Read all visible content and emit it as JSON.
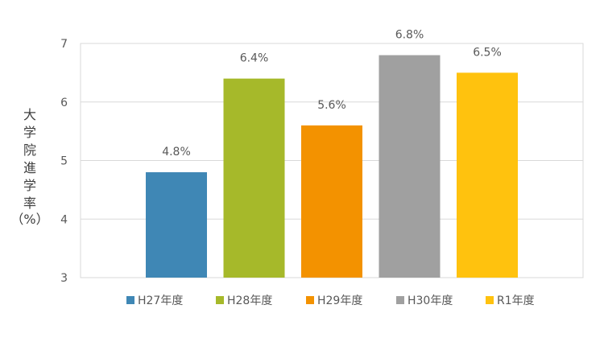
{
  "chart_data": {
    "type": "bar",
    "categories": [
      "H27年度",
      "H28年度",
      "H29年度",
      "H30年度",
      "R1年度"
    ],
    "values": [
      4.8,
      6.4,
      5.6,
      6.8,
      6.5
    ],
    "data_labels": [
      "4.8%",
      "6.4%",
      "5.6%",
      "6.8%",
      "6.5%"
    ],
    "colors": [
      "#3F87B5",
      "#A6B92A",
      "#F39200",
      "#A0A0A0",
      "#FFC20E"
    ],
    "title": "",
    "xlabel": "",
    "ylabel_chars": [
      "大",
      "学",
      "院",
      "進",
      "学",
      "率"
    ],
    "ylabel_unit": "（%）",
    "ylim": [
      3,
      7
    ],
    "yticks": [
      "3",
      "4",
      "5",
      "6",
      "7"
    ],
    "grid": true,
    "legend_position": "bottom"
  }
}
